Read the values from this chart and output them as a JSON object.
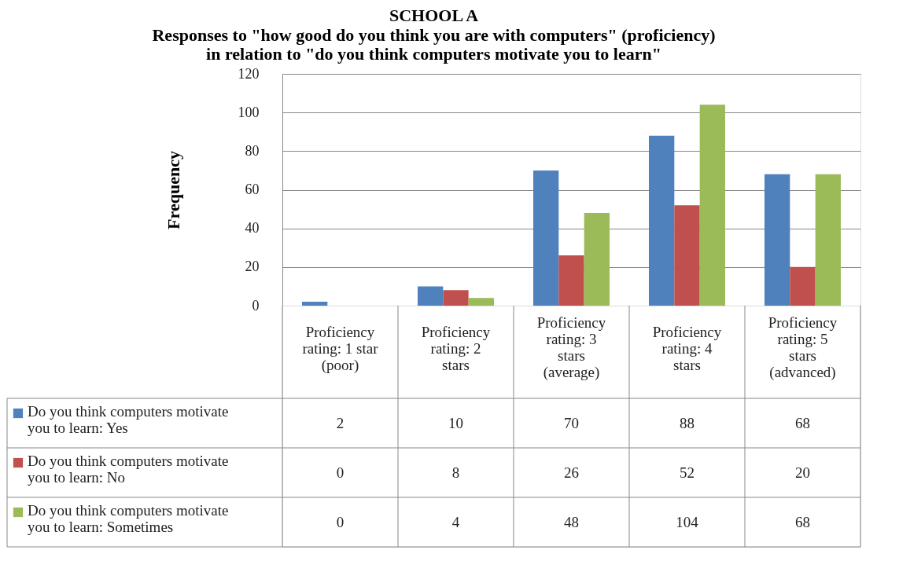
{
  "chart_data": {
    "type": "bar",
    "title": "SCHOOL A",
    "subtitle": "Responses to \"how good do you think you are with computers\" (proficiency) in relation to \"do you think computers motivate you to learn\"",
    "ylabel": "Frequency",
    "categories": [
      "Proficiency rating: 1 star (poor)",
      "Proficiency rating: 2 stars",
      "Proficiency rating: 3 stars (average)",
      "Proficiency rating: 4 stars",
      "Proficiency rating: 5 stars (advanced)"
    ],
    "series": [
      {
        "name": "Do you think computers motivate you to learn: Yes",
        "color": "#4f81bd",
        "values": [
          2,
          10,
          70,
          88,
          68
        ]
      },
      {
        "name": "Do you think computers motivate you to learn: No",
        "color": "#c0504d",
        "values": [
          0,
          8,
          26,
          52,
          20
        ]
      },
      {
        "name": "Do you think computers motivate you to learn: Sometimes",
        "color": "#9bbb59",
        "values": [
          0,
          4,
          48,
          104,
          68
        ]
      }
    ],
    "ylim": [
      0,
      120
    ],
    "yticks": [
      0,
      20,
      40,
      60,
      80,
      100,
      120
    ],
    "grid": "y",
    "data_labels": true,
    "legend": "bottom"
  }
}
